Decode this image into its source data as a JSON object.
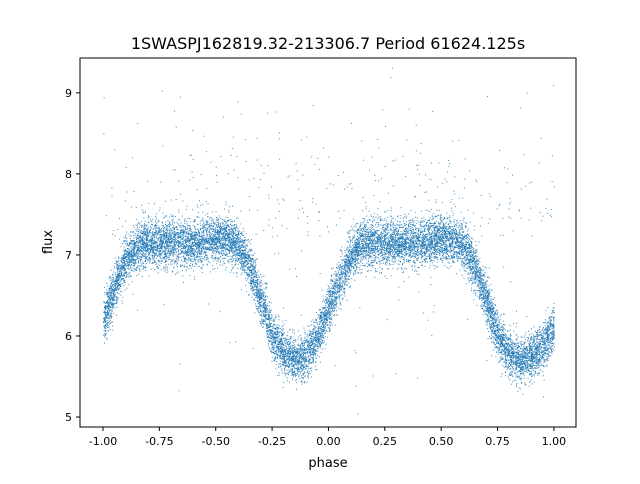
{
  "chart_data": {
    "type": "scatter",
    "title": "1SWASPJ162819.32-213306.7 Period 61624.125s",
    "xlabel": "phase",
    "ylabel": "flux",
    "xlim": [
      -1.102,
      1.098
    ],
    "ylim": [
      4.877,
      9.43
    ],
    "xticks": [
      "-1.00",
      "-0.75",
      "-0.50",
      "-0.25",
      "0.00",
      "0.25",
      "0.50",
      "0.75",
      "1.00"
    ],
    "yticks": [
      "5",
      "6",
      "7",
      "8",
      "9"
    ],
    "grid": false,
    "color": "#1f77b4",
    "binned_median": {
      "x": [
        -1.0,
        -0.95,
        -0.9,
        -0.85,
        -0.8,
        -0.75,
        -0.7,
        -0.65,
        -0.6,
        -0.55,
        -0.5,
        -0.45,
        -0.4,
        -0.35,
        -0.3,
        -0.25,
        -0.2,
        -0.15,
        -0.1,
        -0.05,
        0.0,
        0.05,
        0.1,
        0.15,
        0.2,
        0.25,
        0.3,
        0.35,
        0.4,
        0.45,
        0.5,
        0.55,
        0.6,
        0.65,
        0.7,
        0.75,
        0.8,
        0.85,
        0.9,
        0.95,
        1.0
      ],
      "y": [
        6.2,
        6.6,
        6.95,
        7.1,
        7.15,
        7.15,
        7.15,
        7.15,
        7.15,
        7.18,
        7.2,
        7.2,
        7.1,
        6.85,
        6.45,
        6.0,
        5.8,
        5.72,
        5.75,
        6.0,
        6.35,
        6.7,
        7.0,
        7.15,
        7.15,
        7.15,
        7.15,
        7.15,
        7.15,
        7.18,
        7.2,
        7.2,
        7.1,
        6.85,
        6.45,
        6.0,
        5.8,
        5.72,
        5.75,
        5.9,
        6.1
      ]
    }
  }
}
